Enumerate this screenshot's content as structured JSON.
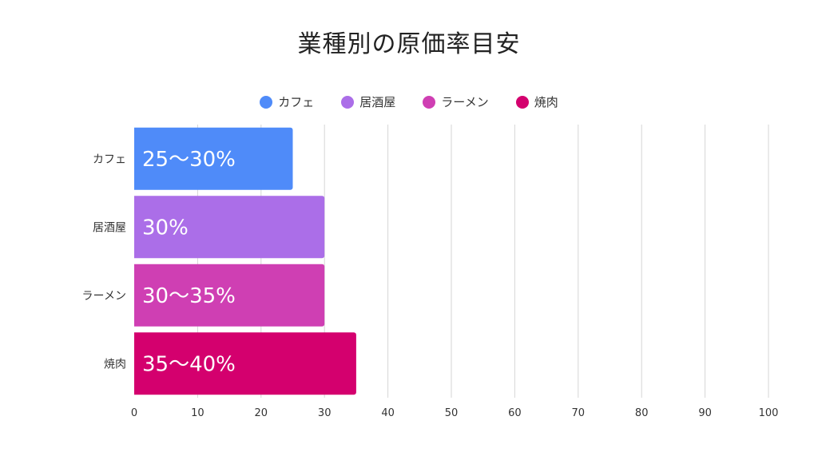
{
  "chart_data": {
    "type": "bar",
    "orientation": "horizontal",
    "title": "業種別の原価率目安",
    "categories": [
      "カフェ",
      "居酒屋",
      "ラーメン",
      "焼肉"
    ],
    "values": [
      25,
      30,
      30,
      35
    ],
    "data_labels": [
      "25〜30%",
      "30%",
      "30〜35%",
      "35〜40%"
    ],
    "colors": [
      "#4f8bf9",
      "#ab6ee8",
      "#cf3fb3",
      "#d4006e"
    ],
    "legend": [
      "カフェ",
      "居酒屋",
      "ラーメン",
      "焼肉"
    ],
    "legend_position": "top",
    "xlim": [
      0,
      100
    ],
    "xticks": [
      0,
      10,
      20,
      30,
      40,
      50,
      60,
      70,
      80,
      90,
      100
    ],
    "grid": true,
    "xlabel": "",
    "ylabel": ""
  }
}
